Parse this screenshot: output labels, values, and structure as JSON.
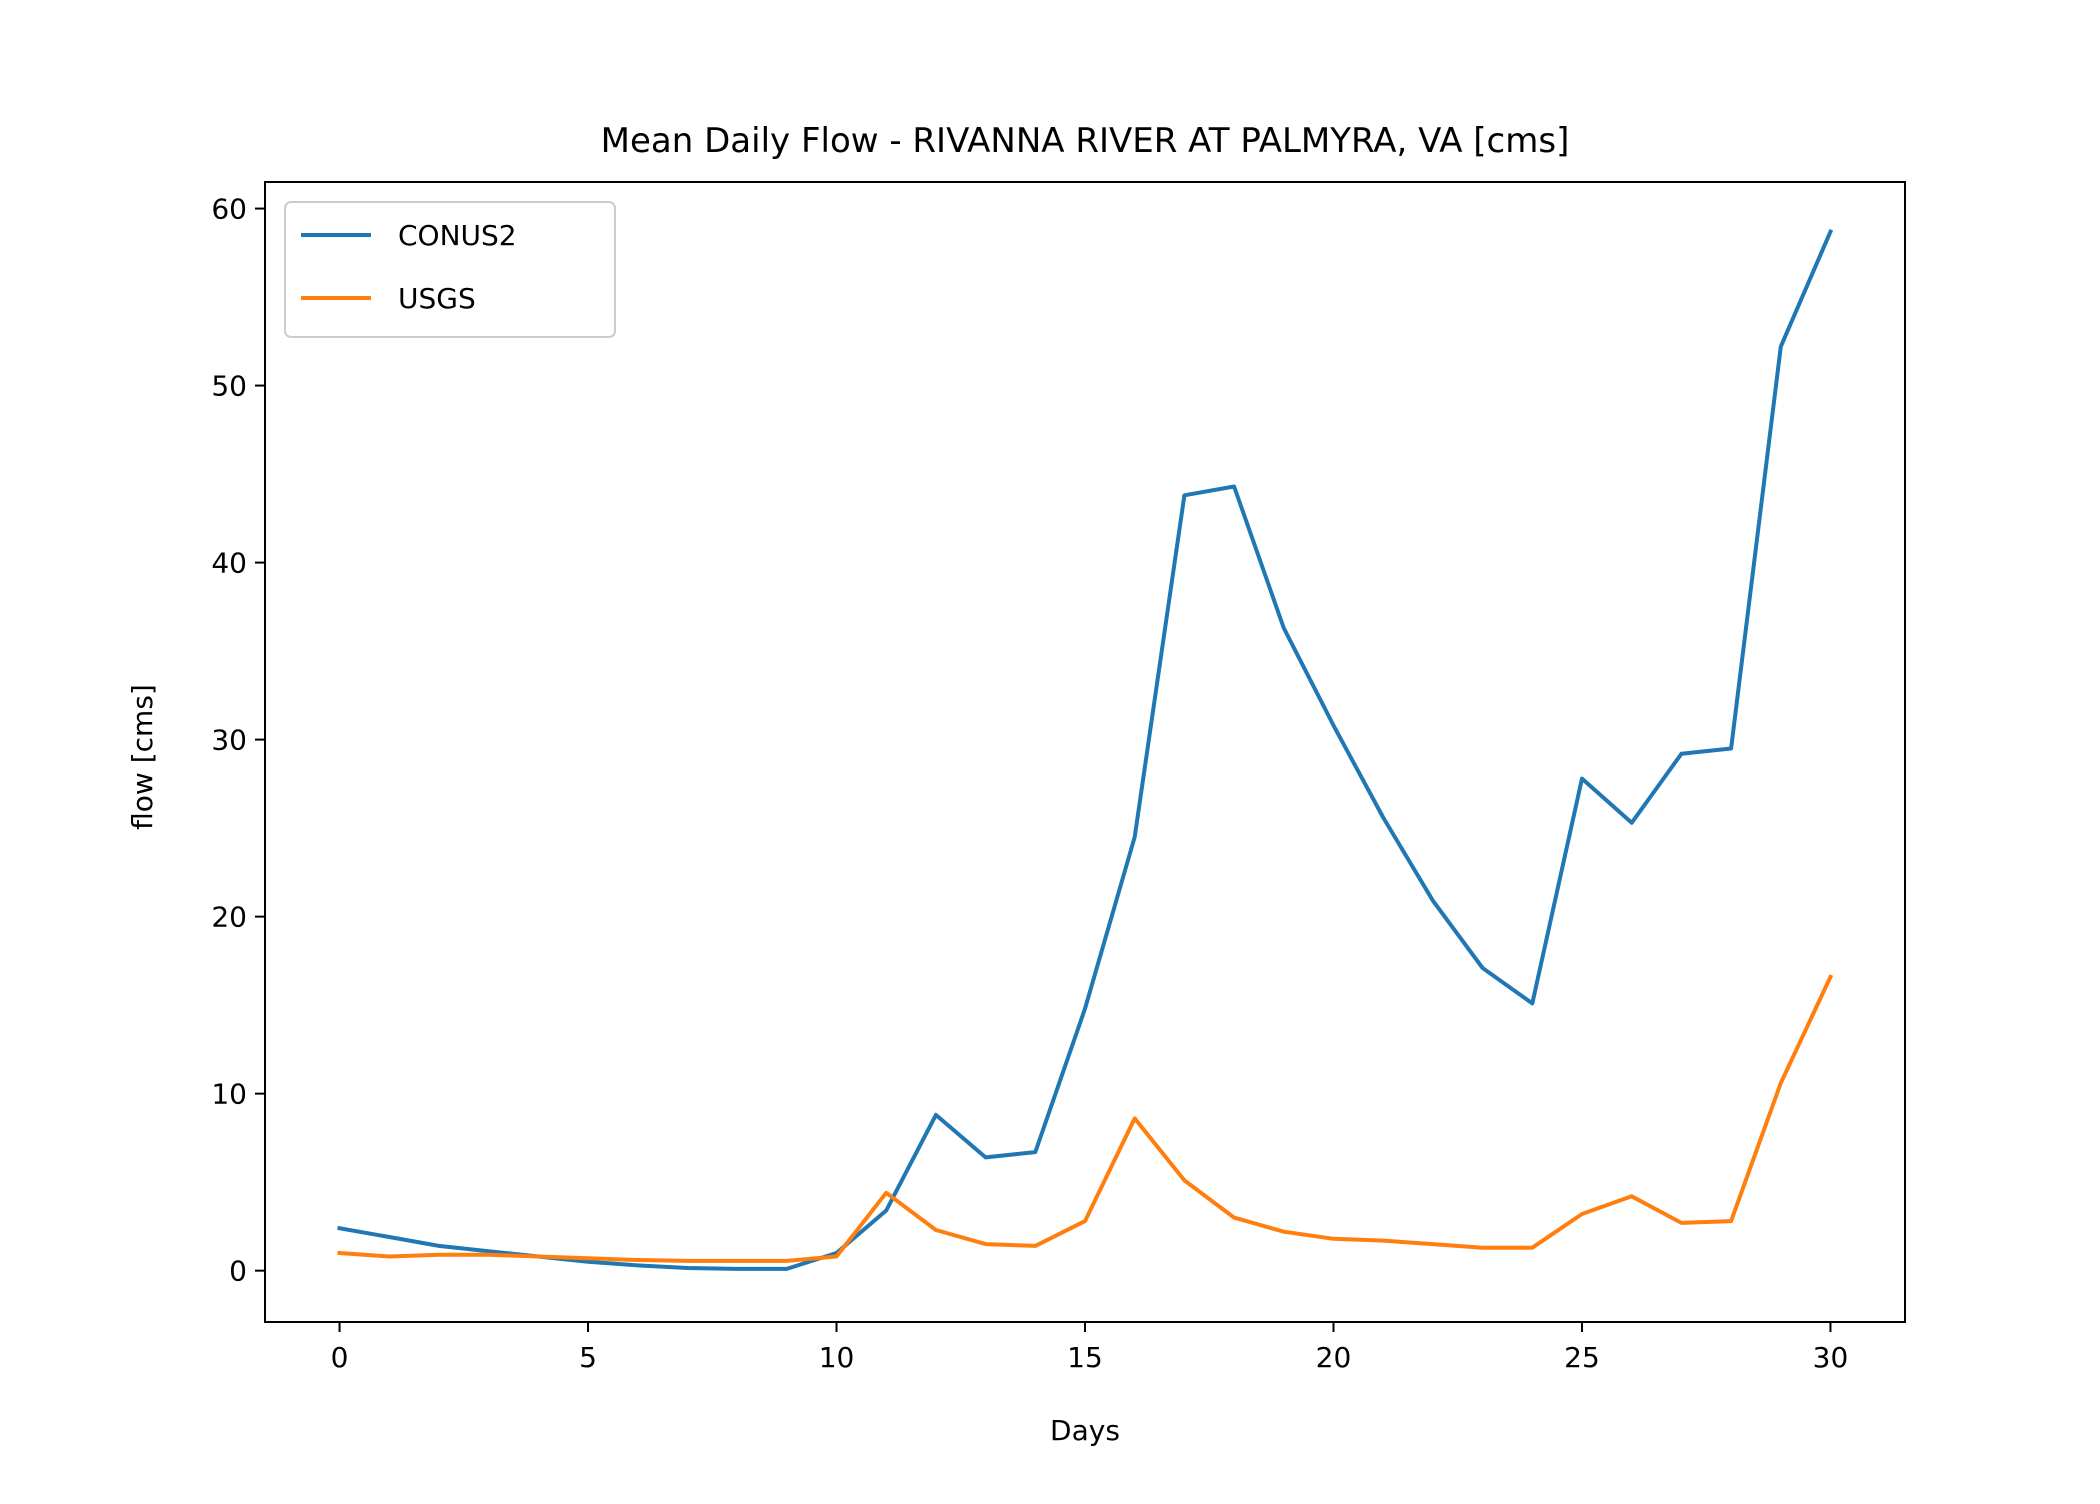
{
  "chart_data": {
    "type": "line",
    "title": "Mean Daily Flow - RIVANNA RIVER AT PALMYRA, VA [cms]",
    "xlabel": "Days",
    "ylabel": "flow [cms]",
    "xlim": [
      -1.5,
      31.5
    ],
    "ylim": [
      -2.9,
      61.5
    ],
    "xticks": [
      0,
      5,
      10,
      15,
      20,
      25,
      30
    ],
    "yticks": [
      0,
      10,
      20,
      30,
      40,
      50,
      60
    ],
    "grid": false,
    "legend_position": "upper-left",
    "x": [
      0,
      1,
      2,
      3,
      4,
      5,
      6,
      7,
      8,
      9,
      10,
      11,
      12,
      13,
      14,
      15,
      16,
      17,
      18,
      19,
      20,
      21,
      22,
      23,
      24,
      25,
      26,
      27,
      28,
      29,
      30
    ],
    "series": [
      {
        "name": "CONUS2",
        "color": "#1f77b4",
        "values": [
          2.4,
          1.9,
          1.4,
          1.1,
          0.8,
          0.5,
          0.3,
          0.15,
          0.1,
          0.1,
          1.0,
          3.4,
          8.8,
          6.4,
          6.7,
          14.8,
          24.5,
          43.8,
          44.3,
          36.3,
          30.8,
          25.6,
          20.9,
          17.1,
          15.1,
          27.8,
          25.3,
          29.2,
          29.5,
          52.2,
          58.7
        ]
      },
      {
        "name": "USGS",
        "color": "#ff7f0e",
        "values": [
          1.0,
          0.8,
          0.9,
          0.9,
          0.8,
          0.7,
          0.6,
          0.55,
          0.55,
          0.55,
          0.8,
          4.4,
          2.3,
          1.5,
          1.4,
          2.8,
          8.6,
          5.1,
          3.0,
          2.2,
          1.8,
          1.7,
          1.5,
          1.3,
          1.3,
          3.2,
          4.2,
          2.7,
          2.8,
          10.6,
          16.6
        ]
      }
    ]
  }
}
